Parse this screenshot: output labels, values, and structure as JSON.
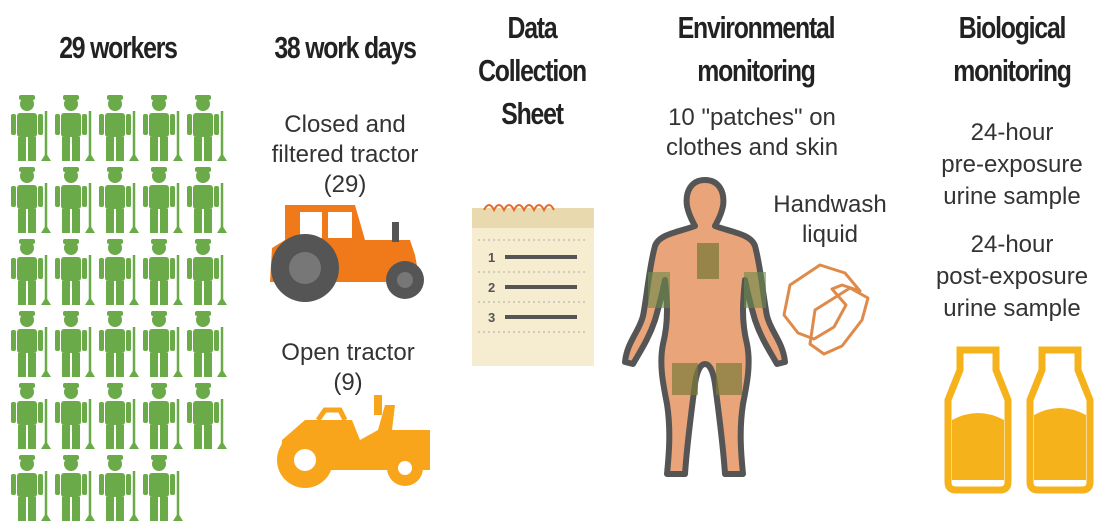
{
  "workers": {
    "title": "29 workers",
    "count": 29
  },
  "work_days": {
    "title": "38 work days",
    "closed": [
      "Closed and",
      "filtered tractor",
      "(29)"
    ],
    "open": [
      "Open tractor",
      "(9)"
    ]
  },
  "data_sheet": {
    "title": [
      "Data",
      "Collection",
      "Sheet"
    ],
    "items": [
      "1",
      "2",
      "3"
    ]
  },
  "environmental": {
    "title": [
      "Environmental",
      "monitoring"
    ],
    "patches": [
      "10 \"patches\" on",
      "clothes and skin"
    ],
    "handwash": [
      "Handwash",
      "liquid"
    ]
  },
  "biological": {
    "title": [
      "Biological",
      "monitoring"
    ],
    "pre": [
      "24-hour",
      "pre-exposure",
      "urine sample"
    ],
    "post": [
      "24-hour",
      "post-exposure",
      "urine sample"
    ]
  }
}
